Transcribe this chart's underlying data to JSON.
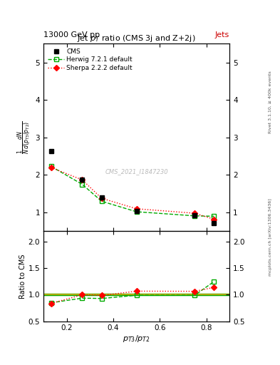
{
  "title_main": "Jet $p_{T}$ ratio (CMS 3j and Z+2j)",
  "top_left_text": "13000 GeV pp",
  "top_right_text": "Jets",
  "watermark": "CMS_2021_I1847230",
  "right_label_top": "Rivet 3.1.10, ≥ 400k events",
  "right_label_bottom": "mcplots.cern.ch [arXiv:1306.3436]",
  "ylabel_main": "$\\frac{1}{N}\\frac{dN}{d(p_{T3}/p_{T2})}$",
  "ylabel_ratio": "Ratio to CMS",
  "xlabel": "$p_{T3}/p_{T2}$",
  "xlim": [
    0.1,
    0.9
  ],
  "ylim_main": [
    0.5,
    5.5
  ],
  "ylim_ratio": [
    0.5,
    2.2
  ],
  "cms_x": [
    0.133,
    0.267,
    0.35,
    0.5,
    0.75,
    0.833
  ],
  "cms_y": [
    2.63,
    1.87,
    1.4,
    1.03,
    0.92,
    0.72
  ],
  "herwig_x": [
    0.133,
    0.267,
    0.35,
    0.5,
    0.75,
    0.833
  ],
  "herwig_y": [
    2.23,
    1.75,
    1.3,
    1.02,
    0.91,
    0.9
  ],
  "sherpa_x": [
    0.133,
    0.267,
    0.35,
    0.5,
    0.75,
    0.833
  ],
  "sherpa_y": [
    2.2,
    1.87,
    1.38,
    1.1,
    0.98,
    0.82
  ],
  "herwig_ratio": [
    0.848,
    0.936,
    0.929,
    0.99,
    0.989,
    1.25
  ],
  "sherpa_ratio": [
    0.836,
    1.0,
    0.986,
    1.068,
    1.065,
    1.139
  ],
  "cms_color": "#000000",
  "herwig_color": "#00aa00",
  "sherpa_color": "#ff0000",
  "ref_line_color1": "#aaaa00",
  "ref_line_color2": "#00aa00",
  "bg_color": "#ffffff",
  "yticks_main": [
    1,
    2,
    3,
    4,
    5
  ],
  "yticks_ratio": [
    0.5,
    1.0,
    1.5,
    2.0
  ],
  "xticks": [
    0.2,
    0.4,
    0.6,
    0.8
  ]
}
